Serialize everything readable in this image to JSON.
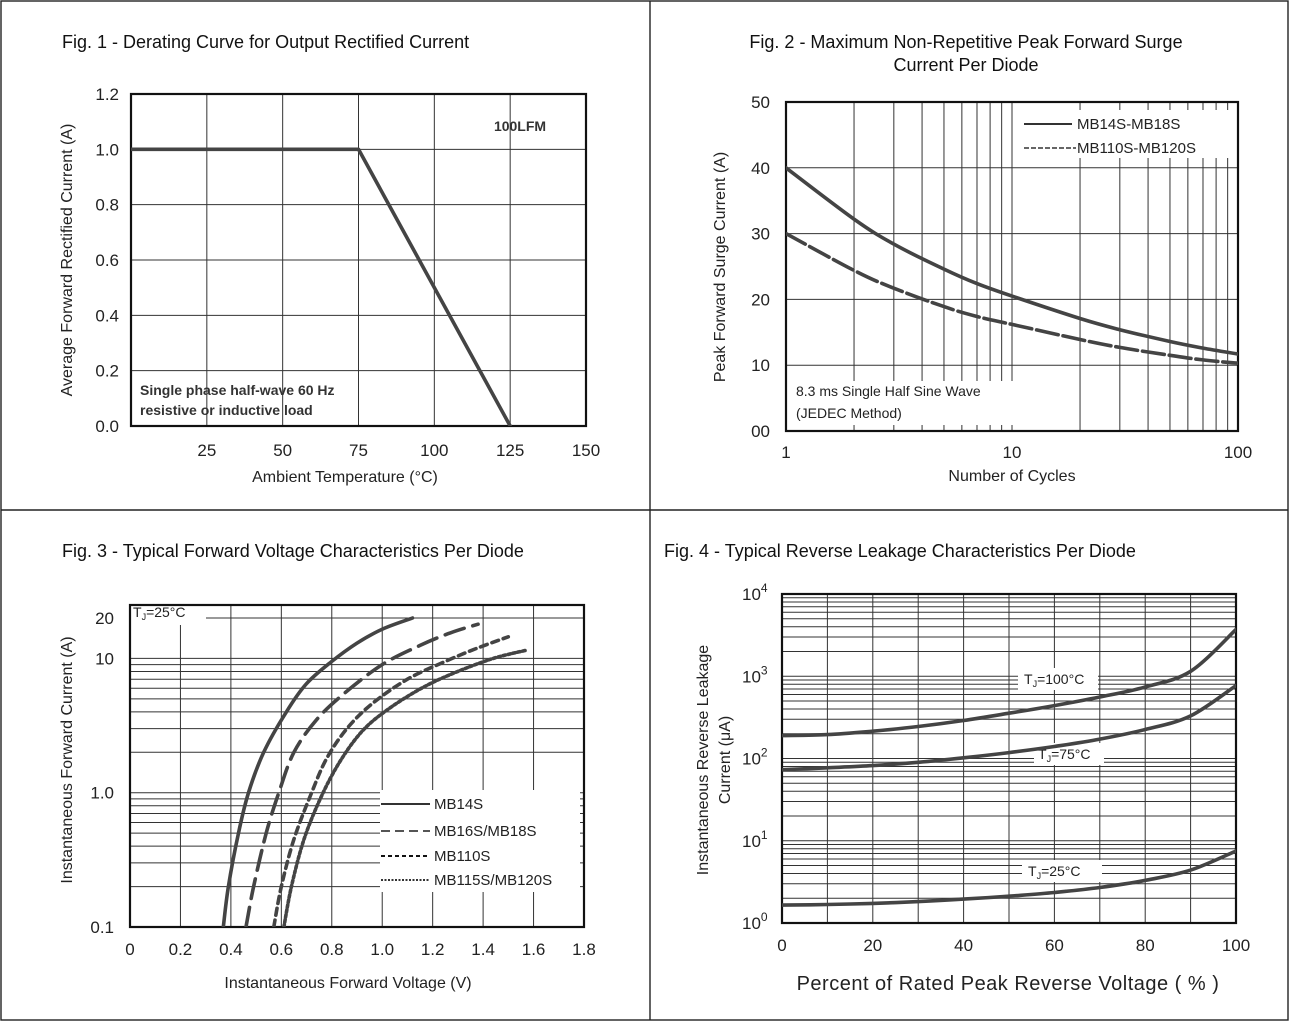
{
  "chart_data": [
    {
      "type": "line",
      "title": "Fig. 1 - Derating Curve for Output Rectified Current",
      "xlabel": "Ambient Temperature (°C)",
      "ylabel": "Average Forward Rectified Current (A)",
      "xlim": [
        0,
        150
      ],
      "ylim": [
        0,
        1.2
      ],
      "x_ticks": [
        "25",
        "50",
        "75",
        "100",
        "125",
        "150"
      ],
      "y_ticks": [
        "0.0",
        "0.2",
        "0.4",
        "0.6",
        "0.8",
        "1.0",
        "1.2"
      ],
      "grid": true,
      "annotations": [
        "100LFM",
        "Single phase half-wave 60 Hz",
        "resistive or inductive load"
      ],
      "series": [
        {
          "points": [
            [
              0,
              1.0
            ],
            [
              75,
              1.0
            ],
            [
              125,
              0.0
            ]
          ]
        }
      ]
    },
    {
      "type": "line",
      "title": "Fig. 2 - Maximum Non-Repetitive Peak Forward Surge",
      "subtitle": "Current Per Diode",
      "xlabel": "Number of Cycles",
      "ylabel": "Peak Forward Surge Current (A)",
      "xscale": "log",
      "xlim": [
        1,
        100
      ],
      "ylim": [
        0,
        50
      ],
      "x_ticks": [
        "1",
        "10",
        "100"
      ],
      "y_ticks": [
        "00",
        "10",
        "20",
        "30",
        "40",
        "50"
      ],
      "grid": true,
      "legend_position": "top-right",
      "annotations": [
        "8.3 ms Single Half Sine Wave",
        "(JEDEC Method)"
      ],
      "series": [
        {
          "name": "MB14S-MB18S",
          "style": "solid",
          "points": [
            [
              1,
              40
            ],
            [
              2,
              32.2
            ],
            [
              3,
              28.4
            ],
            [
              5,
              24.6
            ],
            [
              7,
              22.4
            ],
            [
              10,
              20.5
            ],
            [
              20,
              17.1
            ],
            [
              30,
              15.4
            ],
            [
              50,
              13.6
            ],
            [
              70,
              12.6
            ],
            [
              100,
              11.7
            ]
          ]
        },
        {
          "name": "MB110S-MB120S",
          "style": "dashed",
          "points": [
            [
              1,
              30
            ],
            [
              2,
              24.4
            ],
            [
              3,
              21.7
            ],
            [
              5,
              18.9
            ],
            [
              7,
              17.4
            ],
            [
              10,
              16.2
            ],
            [
              20,
              13.9
            ],
            [
              30,
              12.7
            ],
            [
              50,
              11.5
            ],
            [
              70,
              10.8
            ],
            [
              100,
              10.3
            ]
          ]
        }
      ]
    },
    {
      "type": "line",
      "title": "Fig. 3 - Typical Forward Voltage Characteristics Per Diode",
      "xlabel": "Instantaneous Forward Voltage (V)",
      "ylabel": "Instantaneous Forward Current (A)",
      "yscale": "log",
      "xlim": [
        0,
        1.8
      ],
      "ylim": [
        0.1,
        25
      ],
      "x_ticks": [
        "0",
        "0.2",
        "0.4",
        "0.6",
        "0.8",
        "1.0",
        "1.2",
        "1.4",
        "1.6",
        "1.8"
      ],
      "y_ticks": [
        [
          "0.1",
          0.1
        ],
        [
          "1.0",
          1
        ],
        [
          "10",
          10
        ],
        [
          "20",
          20
        ]
      ],
      "grid": true,
      "legend_position": "bottom-right",
      "annotations": [
        "T",
        "J",
        "=25°C"
      ],
      "series": [
        {
          "name": "MB14S",
          "style": "solid",
          "points": [
            [
              0.37,
              0.1
            ],
            [
              0.39,
              0.2
            ],
            [
              0.43,
              0.5
            ],
            [
              0.47,
              1.0
            ],
            [
              0.53,
              2.0
            ],
            [
              0.62,
              4.0
            ],
            [
              0.7,
              6.5
            ],
            [
              0.8,
              9.5
            ],
            [
              0.9,
              13
            ],
            [
              1.0,
              16.5
            ],
            [
              1.12,
              20
            ]
          ]
        },
        {
          "name": "MB16S/MB18S",
          "style": "dash",
          "points": [
            [
              0.46,
              0.1
            ],
            [
              0.49,
              0.2
            ],
            [
              0.54,
              0.5
            ],
            [
              0.59,
              1.0
            ],
            [
              0.65,
              2.0
            ],
            [
              0.74,
              3.5
            ],
            [
              0.85,
              5.5
            ],
            [
              1.0,
              9.0
            ],
            [
              1.15,
              12.5
            ],
            [
              1.27,
              15.5
            ],
            [
              1.38,
              18
            ]
          ]
        },
        {
          "name": "MB110S",
          "style": "short-dash",
          "points": [
            [
              0.57,
              0.1
            ],
            [
              0.6,
              0.2
            ],
            [
              0.65,
              0.45
            ],
            [
              0.72,
              1.0
            ],
            [
              0.78,
              1.8
            ],
            [
              0.86,
              3.0
            ],
            [
              0.96,
              4.6
            ],
            [
              1.1,
              7.0
            ],
            [
              1.25,
              9.5
            ],
            [
              1.38,
              12
            ],
            [
              1.5,
              14.5
            ]
          ]
        },
        {
          "name": "MB115S/MB120S",
          "style": "dotted",
          "points": [
            [
              0.61,
              0.1
            ],
            [
              0.64,
              0.2
            ],
            [
              0.69,
              0.45
            ],
            [
              0.76,
              0.95
            ],
            [
              0.84,
              1.8
            ],
            [
              0.93,
              3.0
            ],
            [
              1.04,
              4.4
            ],
            [
              1.17,
              6.2
            ],
            [
              1.3,
              8.0
            ],
            [
              1.44,
              10
            ],
            [
              1.57,
              11.5
            ]
          ]
        }
      ]
    },
    {
      "type": "line",
      "title": "Fig. 4 - Typical Reverse Leakage Characteristics Per Diode",
      "xlabel": "Percent of Rated Peak Reverse Voltage ( % )",
      "ylabel": [
        "Instantaneous Reverse Leakage",
        "Current (μA)"
      ],
      "yscale": "log",
      "xlim": [
        0,
        100
      ],
      "ylim": [
        1,
        10000
      ],
      "x_ticks": [
        "0",
        "20",
        "40",
        "60",
        "80",
        "100"
      ],
      "y_ticks": [
        [
          "10",
          "0",
          1
        ],
        [
          "10",
          "1",
          10
        ],
        [
          "10",
          "2",
          100
        ],
        [
          "10",
          "3",
          1000
        ],
        [
          "10",
          "4",
          10000
        ]
      ],
      "grid": true,
      "annotations": [
        [
          "T",
          "J",
          "=100°C"
        ],
        [
          "T",
          "J",
          "=75°C"
        ],
        [
          "T",
          "J",
          "=25°C"
        ]
      ],
      "series": [
        {
          "name": "TJ=100°C",
          "points": [
            [
              0,
              190
            ],
            [
              10,
              195
            ],
            [
              20,
              215
            ],
            [
              30,
              245
            ],
            [
              40,
              290
            ],
            [
              50,
              355
            ],
            [
              60,
              440
            ],
            [
              70,
              560
            ],
            [
              80,
              740
            ],
            [
              90,
              1150
            ],
            [
              100,
              3700
            ]
          ]
        },
        {
          "name": "TJ=75°C",
          "points": [
            [
              0,
              73
            ],
            [
              10,
              77
            ],
            [
              20,
              82
            ],
            [
              30,
              90
            ],
            [
              40,
              102
            ],
            [
              50,
              118
            ],
            [
              60,
              140
            ],
            [
              70,
              172
            ],
            [
              80,
              225
            ],
            [
              90,
              330
            ],
            [
              100,
              770
            ]
          ]
        },
        {
          "name": "TJ=25°C",
          "points": [
            [
              0,
              1.65
            ],
            [
              10,
              1.68
            ],
            [
              20,
              1.73
            ],
            [
              30,
              1.82
            ],
            [
              40,
              1.95
            ],
            [
              50,
              2.12
            ],
            [
              60,
              2.35
            ],
            [
              70,
              2.7
            ],
            [
              80,
              3.3
            ],
            [
              90,
              4.4
            ],
            [
              100,
              7.5
            ]
          ]
        }
      ]
    }
  ]
}
